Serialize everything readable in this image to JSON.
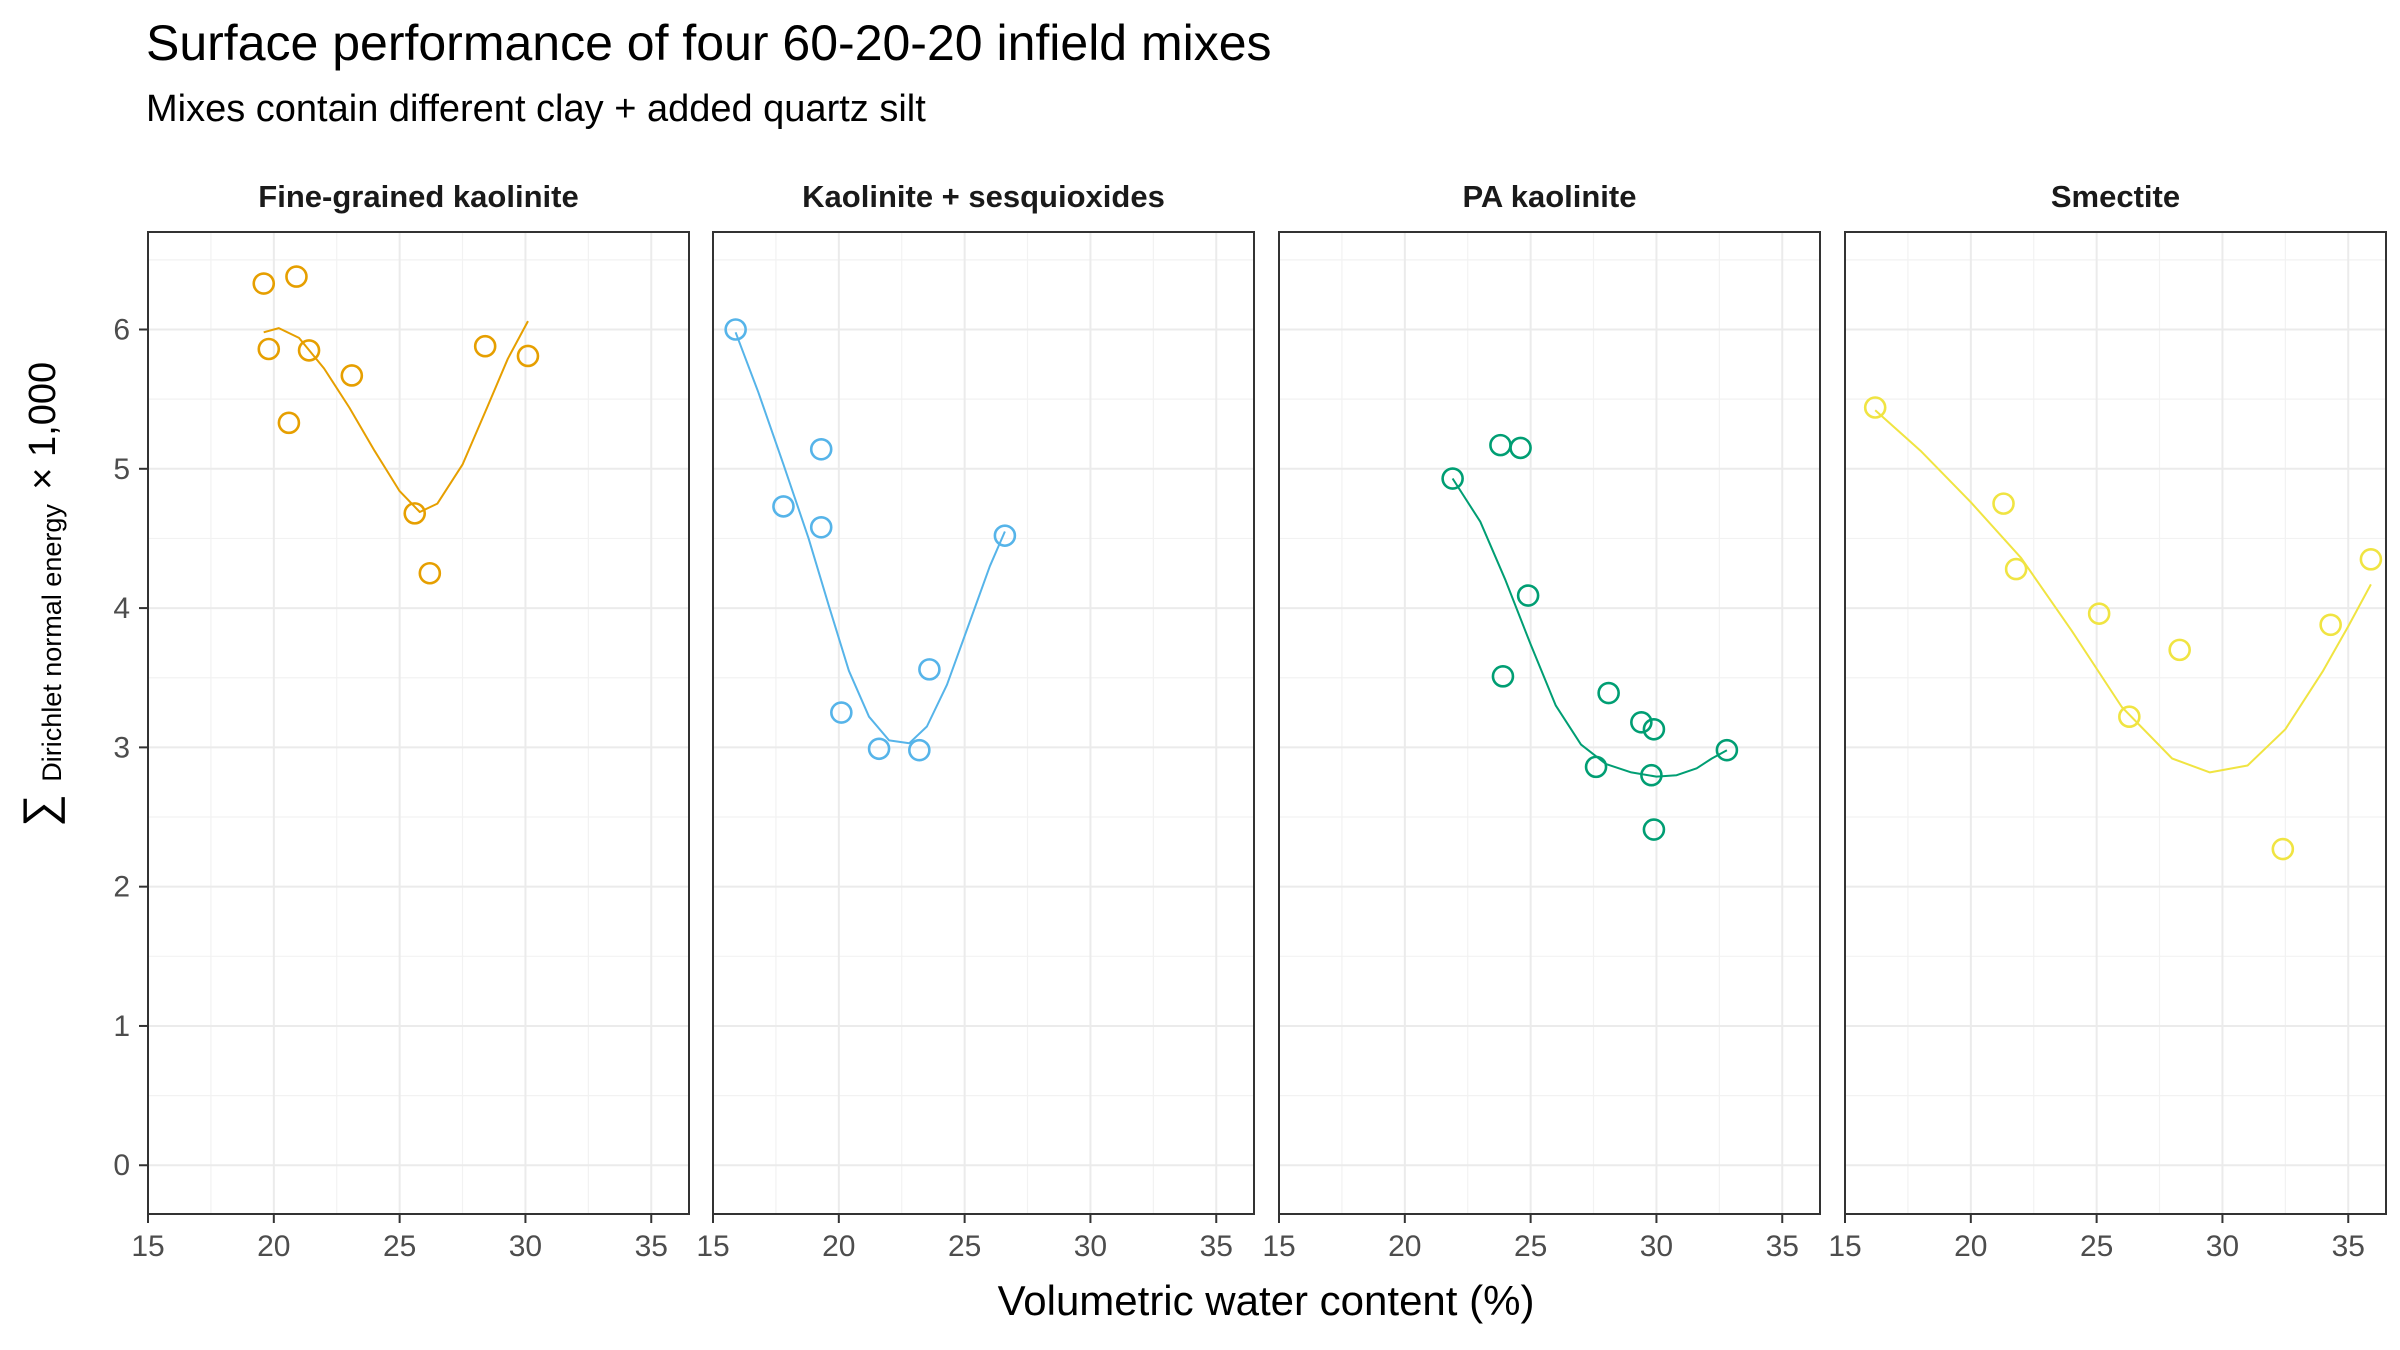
{
  "chart_data": {
    "type": "scatter",
    "title": "Surface performance of four 60-20-20 infield mixes",
    "subtitle": "Mixes contain different clay + added quartz silt",
    "xlabel": "Volumetric water content (%)",
    "ylabel": {
      "symbol": "∑",
      "subscript": "Dirichlet normal energy",
      "suffix": "× 1,000"
    },
    "xlim": [
      15,
      36.5
    ],
    "ylim": [
      -0.35,
      6.7
    ],
    "x_ticks": [
      15,
      20,
      25,
      30,
      35
    ],
    "y_ticks": [
      0,
      1,
      2,
      3,
      4,
      5,
      6
    ],
    "grid": true,
    "facets": [
      {
        "name": "Fine-grained kaolinite",
        "color": "#E69F00",
        "points": [
          {
            "x": 19.6,
            "y": 6.33
          },
          {
            "x": 20.9,
            "y": 6.38
          },
          {
            "x": 19.8,
            "y": 5.86
          },
          {
            "x": 21.4,
            "y": 5.85
          },
          {
            "x": 23.1,
            "y": 5.67
          },
          {
            "x": 20.6,
            "y": 5.33
          },
          {
            "x": 25.6,
            "y": 4.68
          },
          {
            "x": 26.2,
            "y": 4.25
          },
          {
            "x": 28.4,
            "y": 5.88
          },
          {
            "x": 30.1,
            "y": 5.81
          }
        ],
        "fit": [
          {
            "x": 19.6,
            "y": 5.98
          },
          {
            "x": 20.2,
            "y": 6.01
          },
          {
            "x": 21.0,
            "y": 5.94
          },
          {
            "x": 22.0,
            "y": 5.72
          },
          {
            "x": 23.0,
            "y": 5.44
          },
          {
            "x": 24.0,
            "y": 5.13
          },
          {
            "x": 25.0,
            "y": 4.84
          },
          {
            "x": 25.8,
            "y": 4.69
          },
          {
            "x": 26.5,
            "y": 4.75
          },
          {
            "x": 27.5,
            "y": 5.03
          },
          {
            "x": 28.5,
            "y": 5.45
          },
          {
            "x": 29.3,
            "y": 5.79
          },
          {
            "x": 30.1,
            "y": 6.06
          }
        ]
      },
      {
        "name": "Kaolinite + sesquioxides",
        "color": "#56B4E9",
        "points": [
          {
            "x": 15.9,
            "y": 6.0
          },
          {
            "x": 17.8,
            "y": 4.73
          },
          {
            "x": 19.3,
            "y": 5.14
          },
          {
            "x": 19.3,
            "y": 4.58
          },
          {
            "x": 20.1,
            "y": 3.25
          },
          {
            "x": 21.6,
            "y": 2.99
          },
          {
            "x": 23.2,
            "y": 2.98
          },
          {
            "x": 23.6,
            "y": 3.56
          },
          {
            "x": 26.6,
            "y": 4.52
          }
        ],
        "fit": [
          {
            "x": 15.9,
            "y": 5.98
          },
          {
            "x": 16.8,
            "y": 5.55
          },
          {
            "x": 17.8,
            "y": 5.03
          },
          {
            "x": 18.8,
            "y": 4.5
          },
          {
            "x": 19.6,
            "y": 4.02
          },
          {
            "x": 20.4,
            "y": 3.55
          },
          {
            "x": 21.2,
            "y": 3.22
          },
          {
            "x": 22.0,
            "y": 3.05
          },
          {
            "x": 22.8,
            "y": 3.03
          },
          {
            "x": 23.5,
            "y": 3.15
          },
          {
            "x": 24.3,
            "y": 3.45
          },
          {
            "x": 25.2,
            "y": 3.9
          },
          {
            "x": 26.0,
            "y": 4.3
          },
          {
            "x": 26.6,
            "y": 4.55
          }
        ]
      },
      {
        "name": "PA kaolinite",
        "color": "#009E73",
        "points": [
          {
            "x": 21.9,
            "y": 4.93
          },
          {
            "x": 23.8,
            "y": 5.17
          },
          {
            "x": 24.6,
            "y": 5.15
          },
          {
            "x": 24.9,
            "y": 4.09
          },
          {
            "x": 23.9,
            "y": 3.51
          },
          {
            "x": 28.1,
            "y": 3.39
          },
          {
            "x": 29.4,
            "y": 3.18
          },
          {
            "x": 29.9,
            "y": 3.13
          },
          {
            "x": 27.6,
            "y": 2.86
          },
          {
            "x": 29.8,
            "y": 2.8
          },
          {
            "x": 29.9,
            "y": 2.41
          },
          {
            "x": 32.8,
            "y": 2.98
          }
        ],
        "fit": [
          {
            "x": 21.9,
            "y": 4.93
          },
          {
            "x": 23.0,
            "y": 4.62
          },
          {
            "x": 24.0,
            "y": 4.2
          },
          {
            "x": 25.0,
            "y": 3.74
          },
          {
            "x": 26.0,
            "y": 3.3
          },
          {
            "x": 27.0,
            "y": 3.02
          },
          {
            "x": 28.0,
            "y": 2.88
          },
          {
            "x": 29.0,
            "y": 2.82
          },
          {
            "x": 30.0,
            "y": 2.79
          },
          {
            "x": 30.8,
            "y": 2.8
          },
          {
            "x": 31.6,
            "y": 2.85
          },
          {
            "x": 32.2,
            "y": 2.92
          },
          {
            "x": 32.8,
            "y": 2.98
          }
        ]
      },
      {
        "name": "Smectite",
        "color": "#F0E442",
        "points": [
          {
            "x": 16.2,
            "y": 5.44
          },
          {
            "x": 21.3,
            "y": 4.75
          },
          {
            "x": 21.8,
            "y": 4.28
          },
          {
            "x": 25.1,
            "y": 3.96
          },
          {
            "x": 26.3,
            "y": 3.22
          },
          {
            "x": 28.3,
            "y": 3.7
          },
          {
            "x": 32.4,
            "y": 2.27
          },
          {
            "x": 34.3,
            "y": 3.88
          },
          {
            "x": 35.9,
            "y": 4.35
          }
        ],
        "fit": [
          {
            "x": 16.2,
            "y": 5.42
          },
          {
            "x": 18.0,
            "y": 5.13
          },
          {
            "x": 20.0,
            "y": 4.76
          },
          {
            "x": 22.0,
            "y": 4.36
          },
          {
            "x": 24.0,
            "y": 3.84
          },
          {
            "x": 26.0,
            "y": 3.29
          },
          {
            "x": 28.0,
            "y": 2.92
          },
          {
            "x": 29.5,
            "y": 2.82
          },
          {
            "x": 31.0,
            "y": 2.87
          },
          {
            "x": 32.5,
            "y": 3.13
          },
          {
            "x": 34.0,
            "y": 3.55
          },
          {
            "x": 35.0,
            "y": 3.87
          },
          {
            "x": 35.9,
            "y": 4.17
          }
        ]
      }
    ]
  }
}
